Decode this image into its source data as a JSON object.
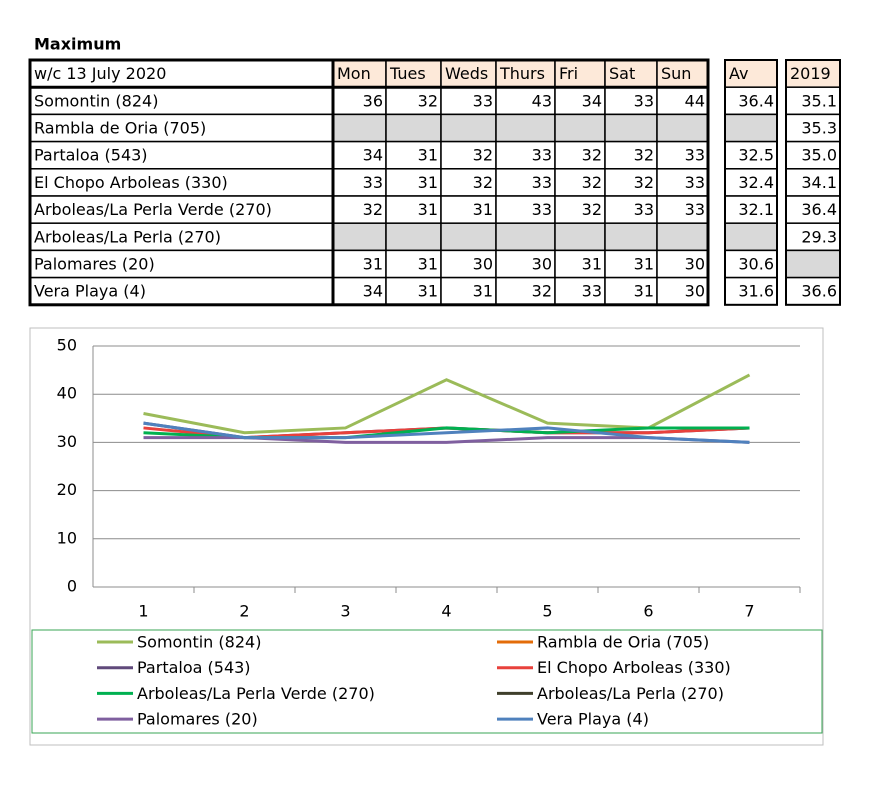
{
  "title": "Maximum",
  "table": {
    "header": [
      "w/c  13 July 2020",
      "Mon",
      "Tues",
      "Weds",
      "Thurs",
      "Fri",
      "Sat",
      "Sun",
      "Av",
      "2019"
    ],
    "rows": [
      [
        "Somontin (824)",
        36,
        32,
        33,
        43,
        34,
        33,
        44,
        36.4,
        35.1
      ],
      [
        "Rambla de Oria (705)",
        null,
        null,
        null,
        null,
        null,
        null,
        null,
        null,
        35.3
      ],
      [
        "Partaloa (543)",
        34,
        31,
        32,
        33,
        32,
        32,
        33,
        32.5,
        {
          "value": 35,
          "label": "35.0"
        }
      ],
      [
        "El Chopo  Arboleas (330)",
        33,
        31,
        32,
        33,
        32,
        32,
        33,
        32.4,
        34.1
      ],
      [
        "Arboleas/La Perla Verde (270)",
        32,
        31,
        31,
        33,
        32,
        33,
        33,
        32.1,
        36.4
      ],
      [
        "Arboleas/La Perla (270)",
        null,
        null,
        null,
        null,
        null,
        null,
        null,
        null,
        29.3
      ],
      [
        "Palomares (20)",
        31,
        31,
        30,
        30,
        31,
        31,
        30,
        30.6,
        null
      ],
      [
        "Vera Playa (4)",
        34,
        31,
        31,
        32,
        33,
        31,
        30,
        31.6,
        36.6
      ]
    ]
  },
  "chart_data": {
    "type": "line",
    "categories": [
      "1",
      "2",
      "3",
      "4",
      "5",
      "6",
      "7"
    ],
    "ylim": [
      0,
      50
    ],
    "yticks": [
      0,
      10,
      20,
      30,
      40,
      50
    ],
    "grid": true,
    "series": [
      {
        "name": "Somontin (824)",
        "color": "#9bbb59",
        "values": [
          36,
          32,
          33,
          43,
          34,
          33,
          44
        ]
      },
      {
        "name": "Rambla de Oria (705)",
        "color": "#e36c09",
        "values": [
          null,
          null,
          null,
          null,
          null,
          null,
          null
        ]
      },
      {
        "name": "Partaloa (543)",
        "color": "#604a7b",
        "values": [
          34,
          31,
          32,
          33,
          32,
          32,
          33
        ]
      },
      {
        "name": "El Chopo  Arboleas (330)",
        "color": "#e8413c",
        "values": [
          33,
          31,
          32,
          33,
          32,
          32,
          33
        ]
      },
      {
        "name": "Arboleas/La Perla Verde (270)",
        "color": "#00b050",
        "values": [
          32,
          31,
          31,
          33,
          32,
          33,
          33
        ]
      },
      {
        "name": "Arboleas/La Perla (270)",
        "color": "#3f3f2b",
        "values": [
          null,
          null,
          null,
          null,
          null,
          null,
          null
        ]
      },
      {
        "name": "Palomares (20)",
        "color": "#7f5f9f",
        "values": [
          31,
          31,
          30,
          30,
          31,
          31,
          30
        ]
      },
      {
        "name": "Vera Playa (4)",
        "color": "#4f81bd",
        "values": [
          34,
          31,
          31,
          32,
          33,
          31,
          30
        ]
      }
    ]
  }
}
